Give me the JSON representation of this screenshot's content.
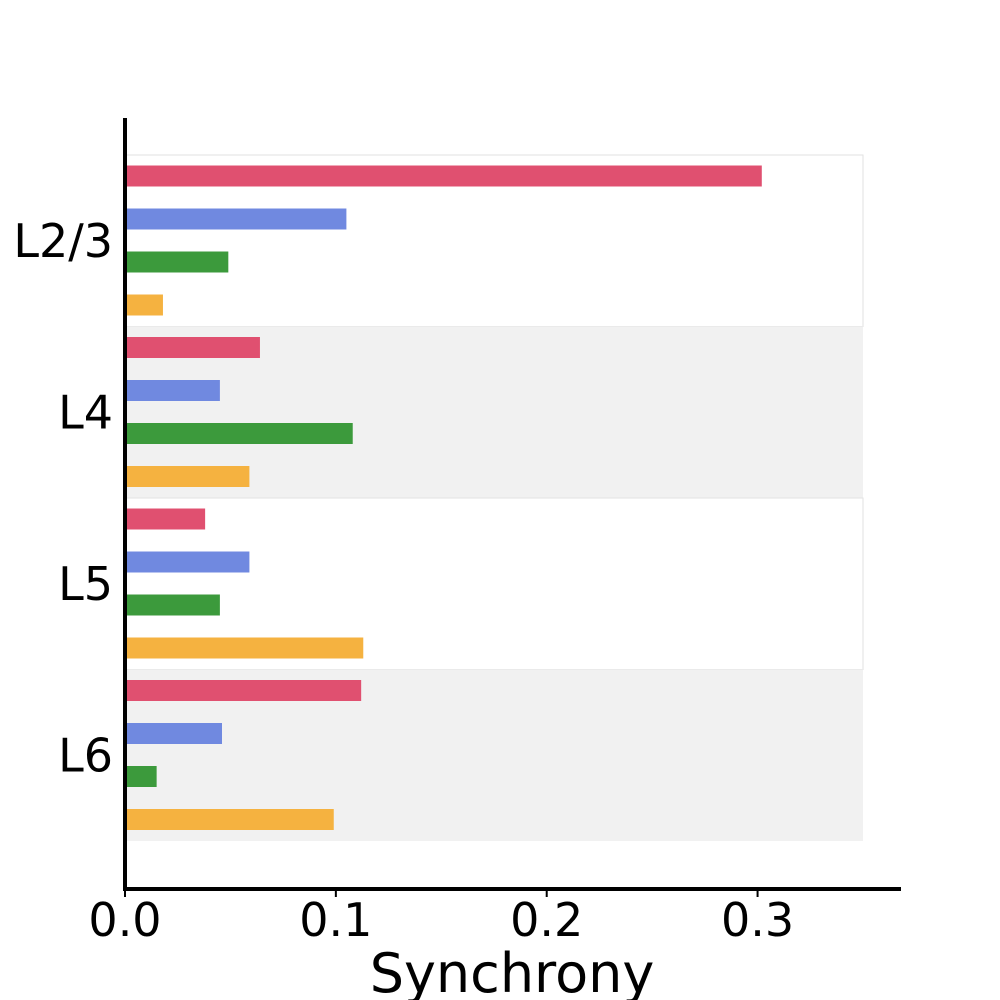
{
  "chart_data": {
    "type": "bar",
    "orientation": "horizontal",
    "categories": [
      "L2/3",
      "L4",
      "L5",
      "L6"
    ],
    "series": [
      {
        "color": "#e05070",
        "values": [
          0.302,
          0.064,
          0.038,
          0.112
        ]
      },
      {
        "color": "#7089e0",
        "values": [
          0.105,
          0.045,
          0.059,
          0.046
        ]
      },
      {
        "color": "#3c9a3c",
        "values": [
          0.049,
          0.108,
          0.045,
          0.015
        ]
      },
      {
        "color": "#f5b240",
        "values": [
          0.018,
          0.059,
          0.113,
          0.099
        ]
      }
    ],
    "xlabel": "Synchrony",
    "xticks": [
      "0.0",
      "0.1",
      "0.2",
      "0.3"
    ],
    "xtick_values": [
      0.0,
      0.1,
      0.2,
      0.3
    ],
    "xlim": [
      0,
      0.35
    ],
    "band_colors": [
      "#ffffff",
      "#f1f1f1",
      "#ffffff",
      "#f1f1f1"
    ],
    "grid": false,
    "legend": "none"
  }
}
